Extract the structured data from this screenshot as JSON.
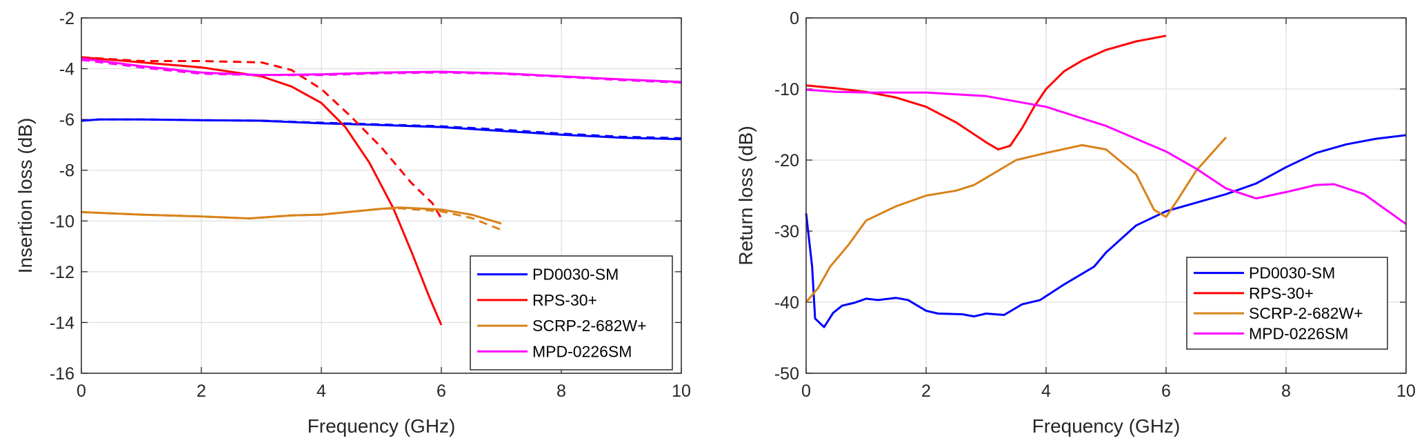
{
  "chart_data": [
    {
      "type": "line",
      "title": "",
      "xlabel": "Frequency (GHz)",
      "ylabel": "Insertion loss (dB)",
      "xlim": [
        0,
        10
      ],
      "ylim": [
        -16,
        -2
      ],
      "xticks": [
        "0",
        "2",
        "4",
        "6",
        "8",
        "10"
      ],
      "yticks": [
        "-16",
        "-14",
        "-12",
        "-10",
        "-8",
        "-6",
        "-4",
        "-2"
      ],
      "grid": true,
      "legend_position": "bottom-right",
      "series": [
        {
          "name": "PD0030-SM",
          "color": "#0000ff",
          "style": "solid",
          "x": [
            0,
            0.3,
            1,
            2,
            3,
            4,
            5,
            6,
            7,
            8,
            9,
            10
          ],
          "y": [
            -6.05,
            -6.0,
            -6.0,
            -6.03,
            -6.05,
            -6.15,
            -6.22,
            -6.3,
            -6.45,
            -6.6,
            -6.72,
            -6.78
          ]
        },
        {
          "color": "#0000ff",
          "style": "dashed",
          "x": [
            0,
            0.3,
            1,
            2,
            3,
            4,
            5,
            6,
            7,
            8,
            9,
            10
          ],
          "y": [
            -6.05,
            -6.0,
            -6.0,
            -6.03,
            -6.05,
            -6.13,
            -6.2,
            -6.27,
            -6.4,
            -6.56,
            -6.68,
            -6.74
          ]
        },
        {
          "name": "RPS-30+",
          "color": "#ff0000",
          "style": "solid",
          "x": [
            0,
            1,
            2,
            3,
            3.5,
            4,
            4.4,
            4.8,
            5.2,
            5.5,
            5.8,
            6
          ],
          "y": [
            -3.55,
            -3.75,
            -3.95,
            -4.3,
            -4.7,
            -5.35,
            -6.3,
            -7.7,
            -9.5,
            -11.2,
            -13.0,
            -14.1
          ]
        },
        {
          "color": "#ff0000",
          "style": "dashed",
          "x": [
            0,
            1,
            2,
            3,
            3.5,
            4,
            4.5,
            5,
            5.5,
            5.85,
            6
          ],
          "y": [
            -3.55,
            -3.7,
            -3.7,
            -3.75,
            -4.05,
            -4.8,
            -5.9,
            -7.1,
            -8.5,
            -9.3,
            -9.9
          ]
        },
        {
          "name": "SCRP-2-682W+",
          "color": "#d9821a",
          "style": "solid",
          "x": [
            0,
            1,
            2,
            2.8,
            3.5,
            4,
            5,
            5.3,
            6,
            6.5,
            7
          ],
          "y": [
            -9.65,
            -9.75,
            -9.82,
            -9.9,
            -9.78,
            -9.75,
            -9.52,
            -9.47,
            -9.55,
            -9.75,
            -10.1
          ]
        },
        {
          "color": "#d9821a",
          "style": "dashed",
          "x": [
            0,
            1,
            2,
            2.8,
            3.5,
            4,
            5,
            5.3,
            6,
            6.5,
            7
          ],
          "y": [
            -9.65,
            -9.75,
            -9.82,
            -9.9,
            -9.78,
            -9.75,
            -9.52,
            -9.5,
            -9.62,
            -9.88,
            -10.35
          ]
        },
        {
          "name": "MPD-0226SM",
          "color": "#ff00ff",
          "style": "solid",
          "x": [
            0,
            1,
            2,
            3,
            4,
            5,
            6,
            7,
            8,
            9,
            10
          ],
          "y": [
            -3.6,
            -3.9,
            -4.15,
            -4.25,
            -4.22,
            -4.15,
            -4.12,
            -4.18,
            -4.3,
            -4.42,
            -4.52
          ]
        },
        {
          "color": "#ff00ff",
          "style": "dashed",
          "x": [
            0,
            1,
            2,
            3,
            4,
            5,
            6,
            7,
            8,
            9,
            10
          ],
          "y": [
            -3.65,
            -3.95,
            -4.2,
            -4.25,
            -4.25,
            -4.18,
            -4.15,
            -4.2,
            -4.32,
            -4.45,
            -4.55
          ]
        }
      ]
    },
    {
      "type": "line",
      "title": "",
      "xlabel": "Frequency (GHz)",
      "ylabel": "Return loss (dB)",
      "xlim": [
        0,
        10
      ],
      "ylim": [
        -50,
        0
      ],
      "xticks": [
        "0",
        "2",
        "4",
        "6",
        "8",
        "10"
      ],
      "yticks": [
        "-50",
        "-40",
        "-30",
        "-20",
        "-10",
        "0"
      ],
      "grid": true,
      "legend_position": "bottom-right",
      "series": [
        {
          "name": "PD0030-SM",
          "color": "#0000ff",
          "style": "solid",
          "x": [
            0,
            0.1,
            0.15,
            0.3,
            0.45,
            0.6,
            0.8,
            1,
            1.2,
            1.5,
            1.7,
            2,
            2.2,
            2.6,
            2.8,
            3,
            3.3,
            3.6,
            3.9,
            4.3,
            4.8,
            5,
            5.5,
            6,
            6.5,
            7,
            7.5,
            8,
            8.5,
            9,
            9.5,
            10
          ],
          "y": [
            -27.5,
            -35,
            -42.3,
            -43.5,
            -41.5,
            -40.5,
            -40.1,
            -39.5,
            -39.7,
            -39.4,
            -39.7,
            -41.2,
            -41.6,
            -41.7,
            -42,
            -41.6,
            -41.8,
            -40.3,
            -39.7,
            -37.5,
            -35,
            -33,
            -29.2,
            -27.2,
            -26,
            -24.8,
            -23.3,
            -21,
            -19,
            -17.8,
            -17,
            -16.5
          ]
        },
        {
          "name": "RPS-30+",
          "color": "#ff0000",
          "style": "solid",
          "x": [
            0,
            0.5,
            1,
            1.5,
            2,
            2.5,
            3,
            3.2,
            3.4,
            3.6,
            3.8,
            4,
            4.3,
            4.6,
            5,
            5.5,
            6
          ],
          "y": [
            -9.5,
            -9.9,
            -10.4,
            -11.2,
            -12.5,
            -14.7,
            -17.5,
            -18.5,
            -18,
            -15.5,
            -12.5,
            -10,
            -7.5,
            -6,
            -4.5,
            -3.3,
            -2.5
          ]
        },
        {
          "name": "SCRP-2-682W+",
          "color": "#d9821a",
          "style": "solid",
          "x": [
            0,
            0.2,
            0.4,
            0.7,
            1,
            1.5,
            2,
            2.5,
            2.8,
            3,
            3.5,
            4,
            4.6,
            5,
            5.5,
            5.8,
            5.9,
            6,
            6.2,
            6.5,
            7
          ],
          "y": [
            -40,
            -38,
            -35,
            -32,
            -28.5,
            -26.5,
            -25,
            -24.3,
            -23.5,
            -22.5,
            -20,
            -19,
            -17.9,
            -18.5,
            -22,
            -27,
            -27.5,
            -28,
            -25.5,
            -21.5,
            -16.8
          ]
        },
        {
          "name": "MPD-0226SM",
          "color": "#ff00ff",
          "style": "solid",
          "x": [
            0,
            0.5,
            1,
            2,
            3,
            4,
            5,
            6,
            6.5,
            7,
            7.5,
            8,
            8.5,
            8.8,
            9.3,
            10
          ],
          "y": [
            -10.1,
            -10.4,
            -10.5,
            -10.5,
            -11,
            -12.5,
            -15.2,
            -18.8,
            -21.2,
            -24,
            -25.4,
            -24.5,
            -23.5,
            -23.4,
            -24.8,
            -29
          ]
        }
      ]
    }
  ]
}
